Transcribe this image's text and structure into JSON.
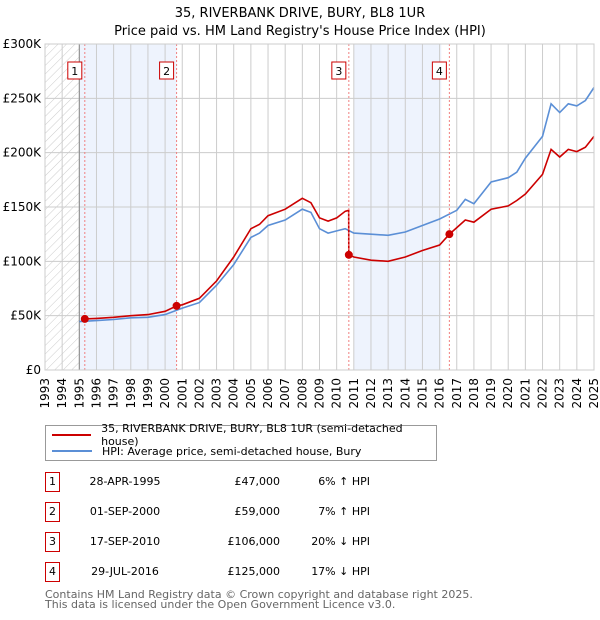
{
  "chart_data": {
    "type": "line",
    "title": "35, RIVERBANK DRIVE, BURY, BL8 1UR",
    "subtitle": "Price paid vs. HM Land Registry's House Price Index (HPI)",
    "xlim": [
      1993,
      2025
    ],
    "ylim": [
      0,
      300000
    ],
    "y_ticks": [
      {
        "v": 0,
        "label": "£0"
      },
      {
        "v": 50000,
        "label": "£50K"
      },
      {
        "v": 100000,
        "label": "£100K"
      },
      {
        "v": 150000,
        "label": "£150K"
      },
      {
        "v": 200000,
        "label": "£200K"
      },
      {
        "v": 250000,
        "label": "£250K"
      },
      {
        "v": 300000,
        "label": "£300K"
      }
    ],
    "x_ticks": [
      "1993",
      "1994",
      "1995",
      "1996",
      "1997",
      "1998",
      "1999",
      "2000",
      "2001",
      "2002",
      "2003",
      "2004",
      "2005",
      "2006",
      "2007",
      "2008",
      "2009",
      "2010",
      "2011",
      "2012",
      "2013",
      "2014",
      "2015",
      "2016",
      "2017",
      "2018",
      "2019",
      "2020",
      "2021",
      "2022",
      "2023",
      "2024",
      "2025"
    ],
    "grid": true,
    "hatched_range": [
      1993,
      1995
    ],
    "shaded_ranges": [
      [
        1995,
        2000.67
      ],
      [
        2011,
        2016.1
      ]
    ],
    "series": [
      {
        "name": "35, RIVERBANK DRIVE, BURY, BL8 1UR (semi-detached house)",
        "color": "#cc0000",
        "x": [
          1995.32,
          1996,
          1997,
          1998,
          1999,
          2000,
          2000.67,
          2001,
          2002,
          2003,
          2004,
          2005,
          2005.5,
          2006,
          2007,
          2007.5,
          2008,
          2008.5,
          2009,
          2009.5,
          2010,
          2010.5,
          2010.7,
          2010.71,
          2011,
          2012,
          2013,
          2014,
          2015,
          2016,
          2016.57,
          2017,
          2017.5,
          2018,
          2019,
          2020,
          2020.5,
          2021,
          2022,
          2022.5,
          2023,
          2023.5,
          2024,
          2024.5,
          2025
        ],
        "y": [
          47000,
          47500,
          48500,
          50000,
          51000,
          54000,
          59000,
          60000,
          66000,
          82000,
          104000,
          130000,
          134000,
          142000,
          148000,
          153000,
          158000,
          154000,
          140000,
          137000,
          140000,
          146000,
          147000,
          106000,
          104000,
          101000,
          100000,
          104000,
          110000,
          115000,
          125000,
          131000,
          138000,
          136000,
          148000,
          151000,
          156000,
          162000,
          180000,
          203000,
          196000,
          203000,
          201000,
          205000,
          215000
        ]
      },
      {
        "name": "HPI: Average price, semi-detached house, Bury",
        "color": "#5b8fd6",
        "x": [
          1995,
          1996,
          1997,
          1998,
          1999,
          2000,
          2000.67,
          2001,
          2002,
          2003,
          2004,
          2005,
          2005.5,
          2006,
          2007,
          2007.5,
          2008,
          2008.5,
          2009,
          2009.5,
          2010,
          2010.5,
          2011,
          2012,
          2013,
          2014,
          2015,
          2016,
          2017,
          2017.5,
          2018,
          2019,
          2020,
          2020.5,
          2021,
          2022,
          2022.5,
          2023,
          2023.5,
          2024,
          2024.5,
          2025
        ],
        "y": [
          44500,
          45500,
          46500,
          48000,
          48500,
          51000,
          55000,
          57000,
          62000,
          78000,
          97000,
          122000,
          126000,
          133000,
          138000,
          143000,
          148000,
          145000,
          130000,
          126000,
          128000,
          130000,
          126000,
          125000,
          124000,
          127000,
          133000,
          139000,
          147000,
          157000,
          153000,
          173000,
          177000,
          182000,
          195000,
          215000,
          245000,
          237000,
          245000,
          243000,
          248000,
          260000
        ]
      }
    ],
    "sales": [
      {
        "n": "1",
        "x": 1995.32,
        "price": 47000,
        "date": "28-APR-1995",
        "price_label": "£47,000",
        "hpi": "6% ↑ HPI"
      },
      {
        "n": "2",
        "x": 2000.67,
        "price": 59000,
        "date": "01-SEP-2000",
        "price_label": "£59,000",
        "hpi": "7% ↑ HPI"
      },
      {
        "n": "3",
        "x": 2010.71,
        "price": 106000,
        "date": "17-SEP-2010",
        "price_label": "£106,000",
        "hpi": "20% ↓ HPI"
      },
      {
        "n": "4",
        "x": 2016.57,
        "price": 125000,
        "date": "29-JUL-2016",
        "price_label": "£125,000",
        "hpi": "17% ↓ HPI"
      }
    ]
  },
  "legend": {
    "property": "35, RIVERBANK DRIVE, BURY, BL8 1UR (semi-detached house)",
    "hpi": "HPI: Average price, semi-detached house, Bury"
  },
  "footer": {
    "line1": "Contains HM Land Registry data © Crown copyright and database right 2025.",
    "line2": "This data is licensed under the Open Government Licence v3.0."
  }
}
